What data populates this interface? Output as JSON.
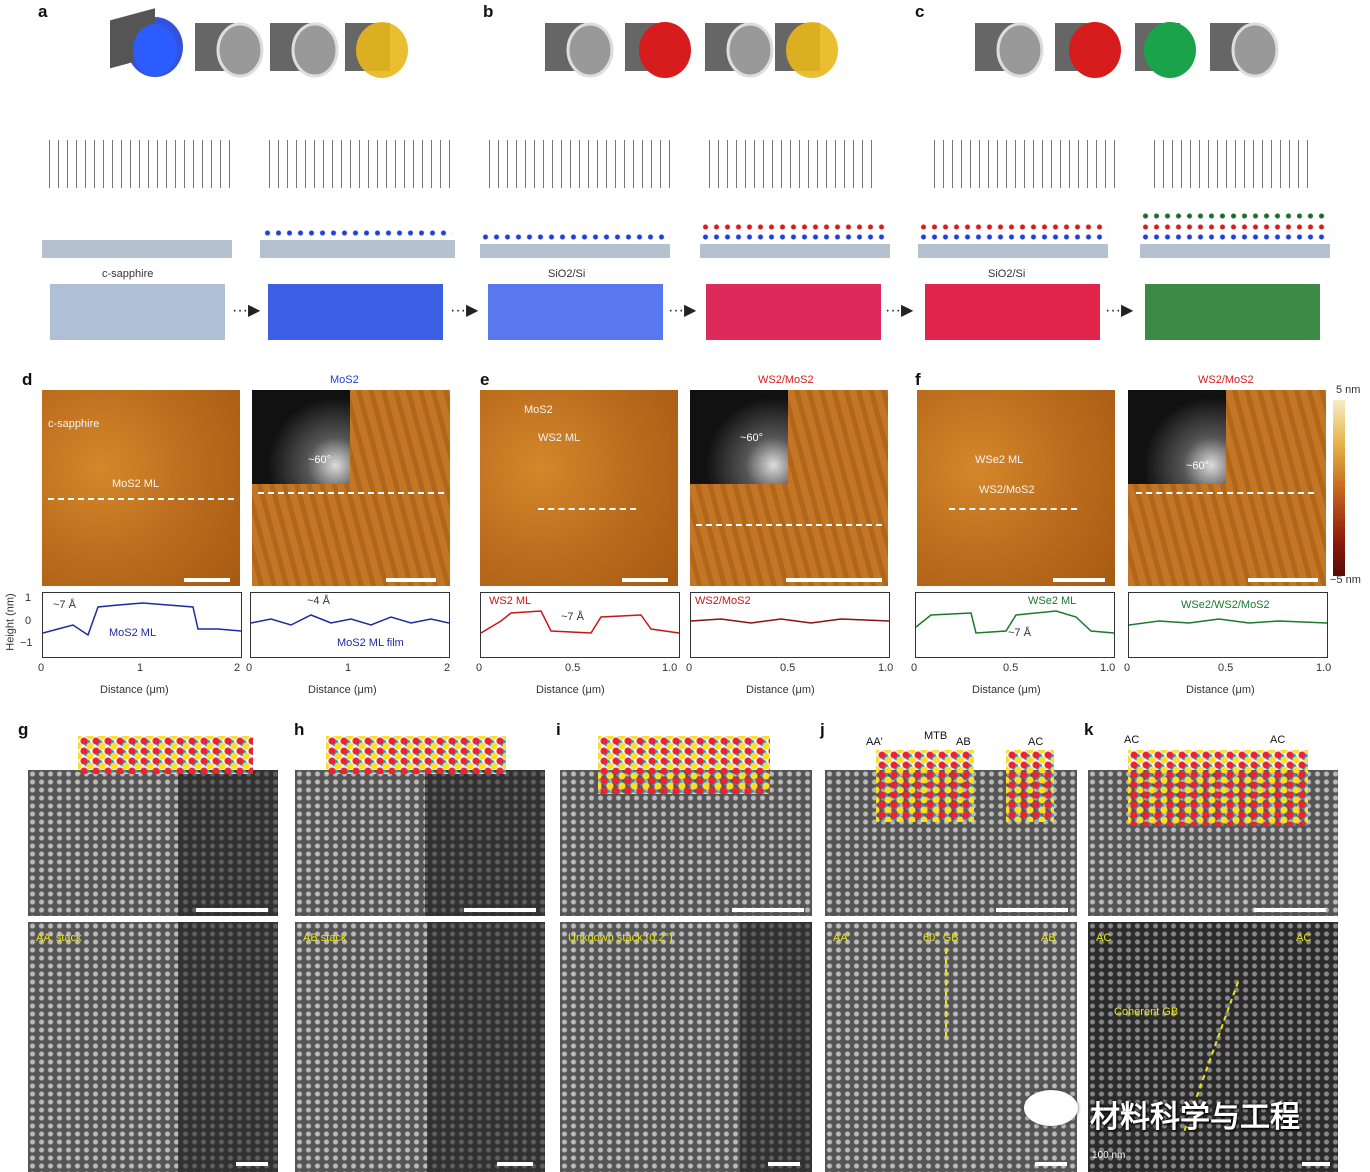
{
  "panels": {
    "a": "a",
    "b": "b",
    "c": "c",
    "d": "d",
    "e": "e",
    "f": "f",
    "g": "g",
    "h": "h",
    "i": "i",
    "j": "j",
    "k": "k"
  },
  "top": {
    "a_substrate": "c-sapphire",
    "b_substrate": "SiO2/Si",
    "c_substrate": "SiO2/Si"
  },
  "afm": {
    "d1_ann1": "c-sapphire",
    "d1_ann2": "MoS2 ML",
    "d2_title": "MoS2",
    "d2_angle": "~60°",
    "e1_ann1": "MoS2",
    "e1_ann2": "WS2 ML",
    "e2_title": "WS2/MoS2",
    "e2_angle": "~60°",
    "f1_ann1": "WSe2 ML",
    "f1_ann2": "WS2/MoS2",
    "f2_title": "WS2/MoS2",
    "f2_angle": "~60°",
    "colorbar_top": "5 nm",
    "colorbar_bottom": "−5 nm"
  },
  "profiles": {
    "ylabel": "Height (nm)",
    "yticks": [
      "1",
      "0",
      "−1"
    ],
    "d1": {
      "ann": "~7 Å",
      "series": "MoS2 ML",
      "xticks": [
        "0",
        "1",
        "2"
      ],
      "xlabel": "Distance (μm)"
    },
    "d2": {
      "ann": "~4 Å",
      "series": "MoS2 ML film",
      "xticks": [
        "0",
        "1",
        "2"
      ],
      "xlabel": "Distance (μm)"
    },
    "e1": {
      "ann": "~7 Å",
      "series": "WS2 ML",
      "xticks": [
        "0",
        "0.5",
        "1.0"
      ],
      "xlabel": "Distance (μm)"
    },
    "e2": {
      "series": "WS2/MoS2",
      "xticks": [
        "0",
        "0.5",
        "1.0"
      ],
      "xlabel": "Distance (μm)"
    },
    "f1": {
      "ann": "~7 Å",
      "series": "WSe2 ML",
      "xticks": [
        "0",
        "0.5",
        "1.0"
      ],
      "xlabel": "Distance (μm)"
    },
    "f2": {
      "series": "WSe2/WS2/MoS2",
      "xticks": [
        "0",
        "0.5",
        "1.0"
      ],
      "xlabel": "Distance (μm)"
    }
  },
  "stem": {
    "g_label": "AA' stack",
    "h_label": "AB stack",
    "i_label": "Unknown stack (0.2°)",
    "j_top1": "AA'",
    "j_top2": "MTB",
    "j_top3": "AB",
    "j_top4": "AC",
    "j_bot1": "AA'",
    "j_bot2": "60° GB",
    "j_bot3": "AB",
    "k_top1": "AC",
    "k_top2": "AC",
    "k_bot1": "AC",
    "k_bot2": "AC",
    "k_mid": "Coherent GB",
    "k_scale": "100 nm"
  },
  "watermark": "材料科学与工程",
  "colors": {
    "blue": "#1e3fd8",
    "red": "#d61c1c",
    "yellow": "#e8b71a",
    "green": "#1aa34a",
    "sapphire_optical": "#3d5fe6",
    "red_optical": "#dd2a5a",
    "green_optical": "#3d8a47"
  }
}
